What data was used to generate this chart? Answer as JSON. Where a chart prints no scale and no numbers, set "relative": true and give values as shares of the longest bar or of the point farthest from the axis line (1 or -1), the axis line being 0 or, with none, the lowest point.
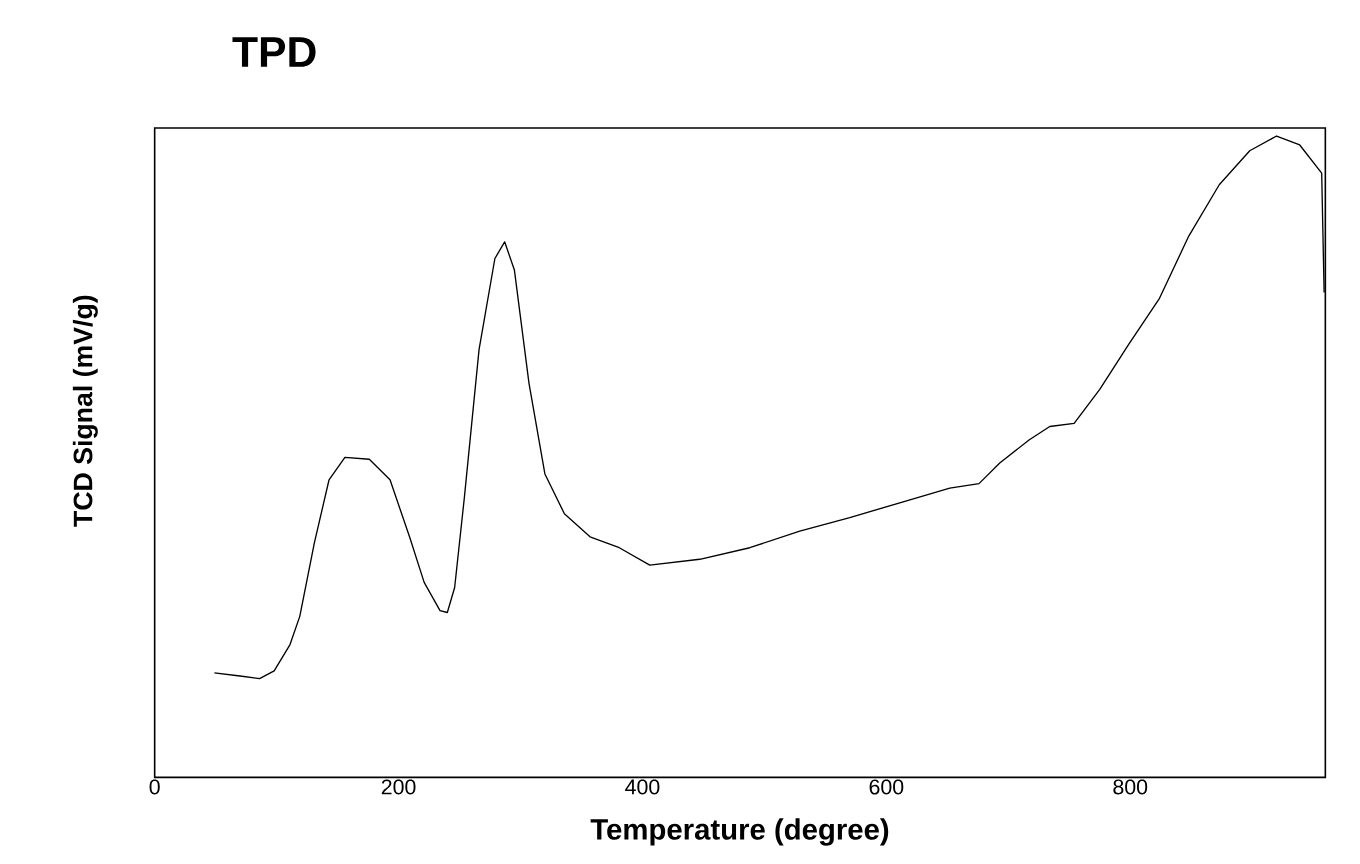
{
  "chart_data": {
    "type": "line",
    "title": "TPD",
    "xlabel": "Temperature (degree)",
    "ylabel": "TCD Signal (mV/g)",
    "relative": true,
    "color": "#000000",
    "xlim": [
      0,
      960
    ],
    "xticks": [
      0,
      200,
      400,
      600,
      800
    ],
    "x": [
      49,
      70,
      86,
      98,
      111,
      119,
      131,
      143,
      156,
      176,
      193,
      209,
      221,
      234,
      240,
      246,
      254,
      266,
      279,
      287,
      295,
      307,
      320,
      336,
      357,
      381,
      406,
      447,
      488,
      529,
      570,
      611,
      652,
      676,
      693,
      717,
      734,
      754,
      775,
      799,
      824,
      848,
      873,
      898,
      920,
      939,
      957,
      959
    ],
    "values": [
      0.163,
      0.158,
      0.154,
      0.166,
      0.207,
      0.251,
      0.366,
      0.464,
      0.499,
      0.496,
      0.464,
      0.375,
      0.304,
      0.26,
      0.257,
      0.296,
      0.437,
      0.667,
      0.809,
      0.835,
      0.791,
      0.614,
      0.473,
      0.411,
      0.375,
      0.358,
      0.331,
      0.34,
      0.358,
      0.384,
      0.405,
      0.428,
      0.451,
      0.458,
      0.49,
      0.526,
      0.547,
      0.552,
      0.605,
      0.676,
      0.747,
      0.844,
      0.924,
      0.977,
      1.0,
      0.986,
      0.942,
      0.756
    ]
  }
}
